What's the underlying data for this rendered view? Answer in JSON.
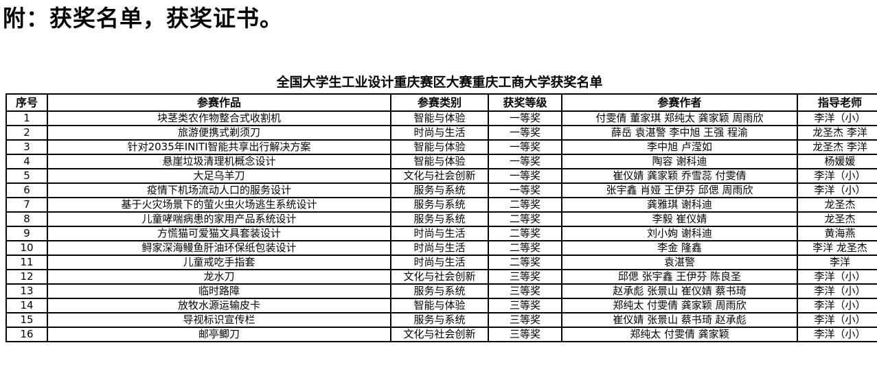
{
  "page": {
    "heading": "附：获奖名单，获奖证书。"
  },
  "table": {
    "title": "全国大学生工业设计重庆赛区大赛重庆工商大学获奖名单",
    "columns": [
      "序号",
      "参赛作品",
      "参赛类别",
      "获奖等级",
      "参赛作者",
      "指导老师"
    ],
    "rows": [
      {
        "no": "1",
        "work": "块茎类农作物整合式收割机",
        "category": "智能与体验",
        "award": "一等奖",
        "authors": "付雯倩 董家琪 郑纯太 龚家颖 周雨欣",
        "advisor": "李洋（小）"
      },
      {
        "no": "2",
        "work": "旅游便携式剃须刀",
        "category": "时尚与生活",
        "award": "一等奖",
        "authors": "薛岳 袁湛警 李中旭 王强 程渝",
        "advisor": "龙圣杰 李洋"
      },
      {
        "no": "3",
        "work": "针对2035年INITI智能共享出行解决方案",
        "category": "智能与体验",
        "award": "一等奖",
        "authors": "李中旭 卢滢如",
        "advisor": "龙圣杰 李洋"
      },
      {
        "no": "4",
        "work": "悬崖垃圾清理机概念设计",
        "category": "智能与体验",
        "award": "一等奖",
        "authors": "陶容 谢科迪",
        "advisor": "杨媛媛"
      },
      {
        "no": "5",
        "work": "大足乌羊刀",
        "category": "文化与社会创新",
        "award": "一等奖",
        "authors": "崔仪婧 龚家颖 乔雪蕊 付雯倩",
        "advisor": "李洋（小）"
      },
      {
        "no": "6",
        "work": "疫情下机场流动人口的服务设计",
        "category": "服务与系统",
        "award": "一等奖",
        "authors": "张宇鑫 肖娅 王伊芬 邱偲 周雨欣",
        "advisor": "李洋（小）"
      },
      {
        "no": "7",
        "work": "基于火灾场景下的萤火虫火场逃生系统设计",
        "category": "服务与系统",
        "award": "二等奖",
        "authors": "龚雅琪 谢科迪",
        "advisor": "龙圣杰"
      },
      {
        "no": "8",
        "work": "儿童哮喘病患的家用产品系统设计",
        "category": "服务与系统",
        "award": "二等奖",
        "authors": "李毅 崔仪婧",
        "advisor": "龙圣杰"
      },
      {
        "no": "9",
        "work": "方慌猫可爱猫文具套装设计",
        "category": "时尚与生活",
        "award": "二等奖",
        "authors": "刘小姁 谢科迪",
        "advisor": "黄海燕"
      },
      {
        "no": "10",
        "work": "鲟家深海鳗鱼肝油环保纸包装设计",
        "category": "时尚与生活",
        "award": "二等奖",
        "authors": "李金 隆鑫",
        "advisor": "李洋 龙圣杰"
      },
      {
        "no": "11",
        "work": "儿童戒吃手指套",
        "category": "时尚与生活",
        "award": "二等奖",
        "authors": "袁湛警",
        "advisor": "李洋"
      },
      {
        "no": "12",
        "work": "龙水刀",
        "category": "文化与社会创新",
        "award": "三等奖",
        "authors": "邱偲 张宇鑫 王伊芬 陈良圣",
        "advisor": "李洋（小）"
      },
      {
        "no": "13",
        "work": "临时路障",
        "category": "服务与系统",
        "award": "三等奖",
        "authors": "赵承彪 张景山 崔仪婧 蔡书琦",
        "advisor": "李洋（小）"
      },
      {
        "no": "14",
        "work": "放牧水源运输皮卡",
        "category": "智能与体验",
        "award": "三等奖",
        "authors": "郑纯太 付雯倩 龚家颖 周雨欣",
        "advisor": "李洋（小）"
      },
      {
        "no": "15",
        "work": "导视标识宣传栏",
        "category": "服务与系统",
        "award": "三等奖",
        "authors": "崔仪婧 张景山 蔡书琦 赵承彪",
        "advisor": "李洋（小）"
      },
      {
        "no": "16",
        "work": "邮亭鲫刀",
        "category": "文化与社会创新",
        "award": "三等奖",
        "authors": "郑纯太 付雯倩 龚家颖",
        "advisor": "李洋（小）"
      }
    ],
    "marker": {
      "description": "small green triangle in top-right corner of award cell",
      "row_index": 15,
      "col_index": 3,
      "color": "#00B050"
    }
  }
}
